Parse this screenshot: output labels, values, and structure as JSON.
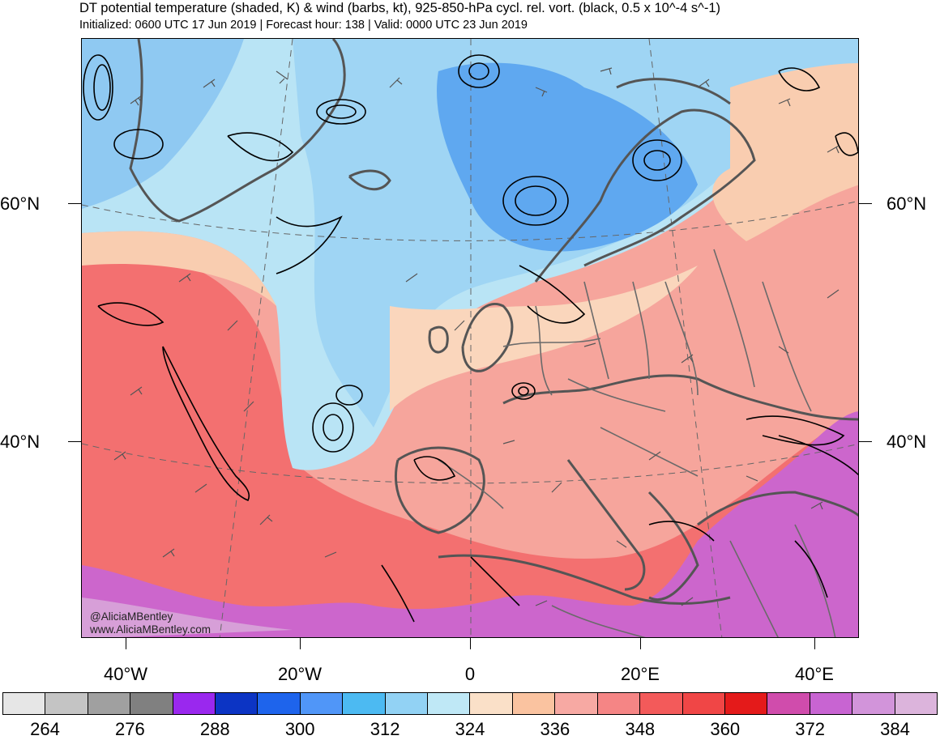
{
  "title": "DT potential temperature (shaded, K) & wind (barbs, kt), 925-850-hPa cycl. rel. vort. (black, 0.5 x 10^-4 s^-1)",
  "subtitle": "Initialized: 0600 UTC 17 Jun 2019 | Forecast hour: 138 | Valid: 0000 UTC 23 Jun 2019",
  "credit": {
    "handle": "@AliciaMBentley",
    "site": "www.AliciaMBentley.com"
  },
  "map": {
    "lat_labels": [
      "60°N",
      "40°N"
    ],
    "lon_labels": [
      "40°W",
      "20°W",
      "0",
      "20°E",
      "40°E"
    ]
  },
  "colorbar": {
    "colors": [
      "#e6e6e6",
      "#c4c4c4",
      "#a0a0a0",
      "#808080",
      "#9a28ee",
      "#0c34c4",
      "#1e64ec",
      "#5096f8",
      "#4cbaf2",
      "#92d2f4",
      "#bfe8f6",
      "#fae0c8",
      "#fac3a0",
      "#f7a9a3",
      "#f58585",
      "#f35a5a",
      "#f04646",
      "#e41a1a",
      "#d04cac",
      "#c864d2",
      "#d294da",
      "#dcb4dc"
    ],
    "labels": [
      "264",
      "276",
      "288",
      "300",
      "312",
      "324",
      "336",
      "348",
      "360",
      "372",
      "384"
    ]
  }
}
